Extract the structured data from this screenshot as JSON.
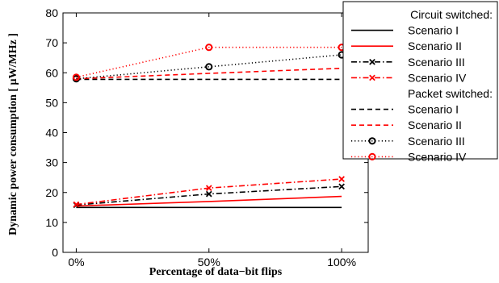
{
  "chart_data": {
    "type": "line",
    "title": "",
    "xlabel": "Percentage of data−bit flips",
    "ylabel": "Dynamic power consumption [  μW/MHz ]",
    "categories": [
      "0%",
      "50%",
      "100%"
    ],
    "x": [
      0,
      50,
      100
    ],
    "xlim": [
      -5,
      110
    ],
    "ylim": [
      0,
      80
    ],
    "yticks": [
      0,
      10,
      20,
      30,
      40,
      50,
      60,
      70,
      80
    ],
    "grid": false,
    "legend_position": "top-right",
    "legend_groups": [
      {
        "title": "Circuit switched:",
        "series_start": 0,
        "series_count": 4
      },
      {
        "title": "Packet switched:",
        "series_start": 4,
        "series_count": 4
      }
    ],
    "series": [
      {
        "name": "Scenario I",
        "group": "Circuit switched",
        "values": [
          15,
          15,
          15
        ],
        "color": "#000000",
        "dash": "solid",
        "marker": "none"
      },
      {
        "name": "Scenario II",
        "group": "Circuit switched",
        "values": [
          15.5,
          17,
          18.7
        ],
        "color": "#ff0000",
        "dash": "solid",
        "marker": "none"
      },
      {
        "name": "Scenario III",
        "group": "Circuit switched",
        "values": [
          15.8,
          19.5,
          22
        ],
        "color": "#000000",
        "dash": "dashdot",
        "marker": "x"
      },
      {
        "name": "Scenario IV",
        "group": "Circuit switched",
        "values": [
          16,
          21.5,
          24.5
        ],
        "color": "#ff0000",
        "dash": "dashdot",
        "marker": "x"
      },
      {
        "name": "Scenario I",
        "group": "Packet switched",
        "values": [
          57.8,
          57.8,
          57.8
        ],
        "color": "#000000",
        "dash": "dashed",
        "marker": "none"
      },
      {
        "name": "Scenario II",
        "group": "Packet switched",
        "values": [
          58,
          59.8,
          61.5
        ],
        "color": "#ff0000",
        "dash": "dashed",
        "marker": "none"
      },
      {
        "name": "Scenario III",
        "group": "Packet switched",
        "values": [
          58,
          62,
          66
        ],
        "color": "#000000",
        "dash": "dotted",
        "marker": "o"
      },
      {
        "name": "Scenario IV",
        "group": "Packet switched",
        "values": [
          58.5,
          68.5,
          68.5
        ],
        "color": "#ff0000",
        "dash": "dotted",
        "marker": "o"
      }
    ]
  }
}
